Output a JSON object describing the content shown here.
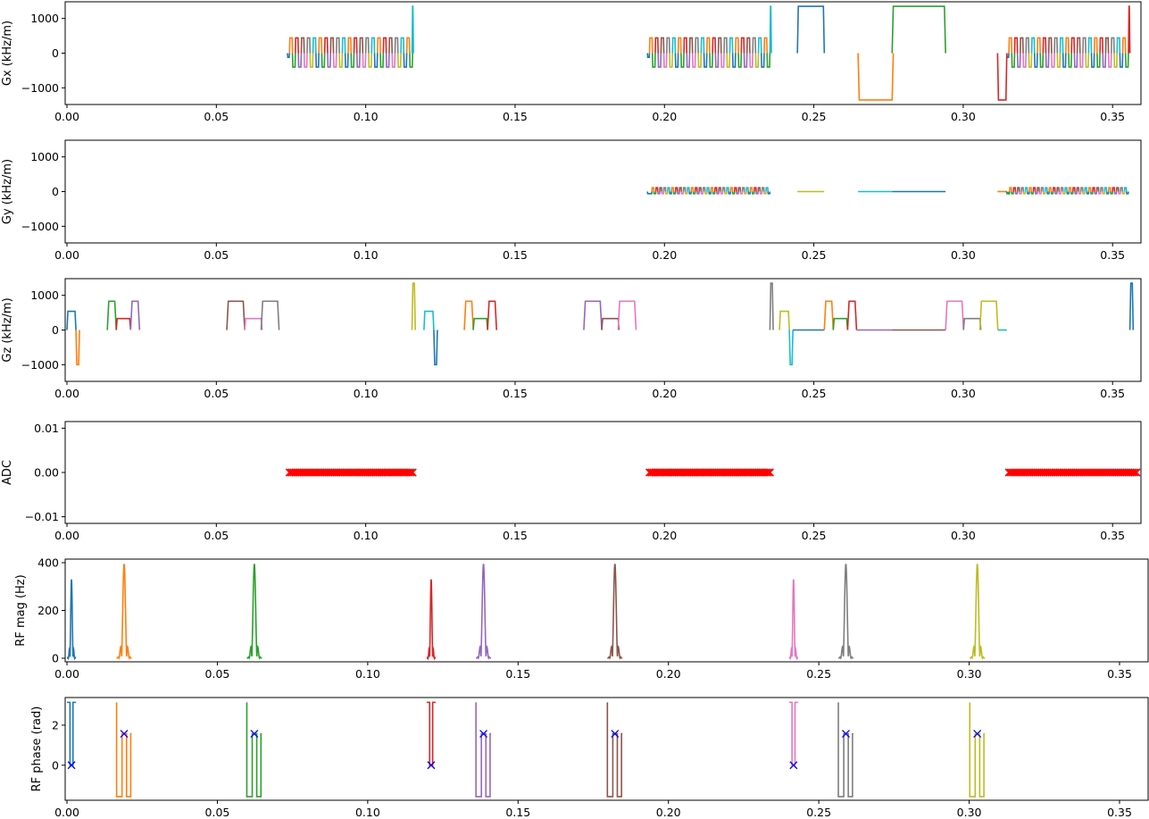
{
  "figure": {
    "x_ticks": [
      "0.00",
      "0.05",
      "0.10",
      "0.15",
      "0.20",
      "0.25",
      "0.30",
      "0.35"
    ]
  },
  "chart_data": [
    {
      "type": "line",
      "ylabel": "Gx (kHz/m)",
      "xlim": [
        -0.0006,
        0.3595
      ],
      "ylim": [
        -1480,
        1480
      ],
      "y_ticks": [
        {
          "v": 1000,
          "t": "1000"
        },
        {
          "v": 0,
          "t": "0"
        },
        {
          "v": -1000,
          "t": "−1000"
        }
      ],
      "trains": [
        {
          "t0": 0.0745,
          "t1": 0.1157,
          "n": 42,
          "hi": 440,
          "lo": -400,
          "lead": [
            0.0738,
            -120
          ]
        },
        {
          "t0": 0.195,
          "t1": 0.2353,
          "n": 42,
          "hi": 440,
          "lo": -400,
          "lead": [
            0.1943,
            -120
          ]
        },
        {
          "t0": 0.3153,
          "t1": 0.3553,
          "n": 42,
          "hi": 440,
          "lo": -400,
          "lead": [
            0.3146,
            -120
          ]
        }
      ],
      "series": [
        {
          "color": "#17becf",
          "x": [
            0.1155,
            0.1157,
            0.1158,
            0.116
          ],
          "y": [
            0,
            1350,
            1350,
            0
          ]
        },
        {
          "color": "#17becf",
          "x": [
            0.2353,
            0.2355,
            0.2356,
            0.2358
          ],
          "y": [
            0,
            1350,
            1350,
            0
          ]
        },
        {
          "color": "#1f77b4",
          "x": [
            0.2445,
            0.2448,
            0.2532,
            0.2535
          ],
          "y": [
            0,
            1350,
            1350,
            0
          ]
        },
        {
          "color": "#ff7f0e",
          "x": [
            0.2648,
            0.2652,
            0.2762,
            0.2766
          ],
          "y": [
            0,
            -1350,
            -1350,
            0
          ]
        },
        {
          "color": "#2ca02c",
          "x": [
            0.2762,
            0.2766,
            0.2937,
            0.2941
          ],
          "y": [
            0,
            1350,
            1350,
            0
          ]
        },
        {
          "color": "#d62728",
          "x": [
            0.3115,
            0.3118,
            0.3143,
            0.3146
          ],
          "y": [
            0,
            -1350,
            -1350,
            0
          ]
        },
        {
          "color": "#d62728",
          "x": [
            0.3553,
            0.3555,
            0.3556,
            0.3558
          ],
          "y": [
            0,
            1350,
            1350,
            0
          ]
        }
      ]
    },
    {
      "type": "line",
      "ylabel": "Gy (kHz/m)",
      "xlim": [
        -0.0006,
        0.3595
      ],
      "ylim": [
        -1480,
        1480
      ],
      "y_ticks": [
        {
          "v": 1000,
          "t": "1000"
        },
        {
          "v": 0,
          "t": "0"
        },
        {
          "v": -1000,
          "t": "−1000"
        }
      ],
      "trains": [
        {
          "t0": 0.1958,
          "t1": 0.2353,
          "n": 60,
          "hi": 110,
          "lo": 60,
          "lead": [
            0.1943,
            -60
          ]
        },
        {
          "t0": 0.3155,
          "t1": 0.3553,
          "n": 60,
          "hi": 110,
          "lo": 60,
          "lead": [
            0.3146,
            -60
          ]
        }
      ],
      "series": [
        {
          "color": "#bcbd22",
          "x": [
            0.2445,
            0.2535
          ],
          "y": [
            0,
            0
          ]
        },
        {
          "color": "#17becf",
          "x": [
            0.2648,
            0.2762
          ],
          "y": [
            0,
            0
          ]
        },
        {
          "color": "#1f77b4",
          "x": [
            0.2762,
            0.2941
          ],
          "y": [
            0,
            0
          ]
        },
        {
          "color": "#ff7f0e",
          "x": [
            0.3115,
            0.3146
          ],
          "y": [
            0,
            0
          ]
        },
        {
          "color": "#2ca02c",
          "x": [
            0.3143,
            0.3153,
            0.3153
          ],
          "y": [
            0,
            -60,
            0
          ]
        }
      ]
    },
    {
      "type": "line",
      "ylabel": "Gz (kHz/m)",
      "xlim": [
        -0.0006,
        0.3595
      ],
      "ylim": [
        -1480,
        1480
      ],
      "y_ticks": [
        {
          "v": 1000,
          "t": "1000"
        },
        {
          "v": 0,
          "t": "0"
        },
        {
          "v": -1000,
          "t": "−1000"
        }
      ],
      "series": [
        {
          "color": "#1f77b4",
          "x": [
            0.0,
            0.0003,
            0.0027,
            0.003
          ],
          "y": [
            0,
            540,
            540,
            0
          ]
        },
        {
          "color": "#ff7f0e",
          "x": [
            0.003,
            0.0033,
            0.0039,
            0.0042
          ],
          "y": [
            0,
            -1000,
            -1000,
            0
          ]
        },
        {
          "color": "#2ca02c",
          "x": [
            0.0135,
            0.014,
            0.016,
            0.0165
          ],
          "y": [
            0,
            830,
            830,
            0
          ]
        },
        {
          "color": "#d62728",
          "x": [
            0.0165,
            0.0168,
            0.021,
            0.0213
          ],
          "y": [
            0,
            330,
            330,
            0
          ]
        },
        {
          "color": "#9467bd",
          "x": [
            0.0213,
            0.0218,
            0.0238,
            0.0243
          ],
          "y": [
            0,
            830,
            830,
            0
          ]
        },
        {
          "color": "#8c564b",
          "x": [
            0.0535,
            0.054,
            0.059,
            0.0595
          ],
          "y": [
            0,
            830,
            830,
            0
          ]
        },
        {
          "color": "#e377c2",
          "x": [
            0.0595,
            0.0598,
            0.065,
            0.0653
          ],
          "y": [
            0,
            330,
            330,
            0
          ]
        },
        {
          "color": "#7f7f7f",
          "x": [
            0.065,
            0.0655,
            0.0705,
            0.071
          ],
          "y": [
            0,
            830,
            830,
            0
          ]
        },
        {
          "color": "#bcbd22",
          "x": [
            0.1155,
            0.1158,
            0.1163,
            0.1166
          ],
          "y": [
            0,
            1350,
            1350,
            0
          ]
        },
        {
          "color": "#17becf",
          "x": [
            0.1195,
            0.1198,
            0.1225,
            0.1228
          ],
          "y": [
            0,
            540,
            540,
            0
          ]
        },
        {
          "color": "#1f77b4",
          "x": [
            0.1228,
            0.1231,
            0.1237,
            0.124
          ],
          "y": [
            0,
            -1000,
            -1000,
            0
          ]
        },
        {
          "color": "#ff7f0e",
          "x": [
            0.133,
            0.1335,
            0.1355,
            0.136
          ],
          "y": [
            0,
            830,
            830,
            0
          ]
        },
        {
          "color": "#2ca02c",
          "x": [
            0.136,
            0.1363,
            0.1405,
            0.1408
          ],
          "y": [
            0,
            330,
            330,
            0
          ]
        },
        {
          "color": "#d62728",
          "x": [
            0.1408,
            0.1413,
            0.1433,
            0.1438
          ],
          "y": [
            0,
            830,
            830,
            0
          ]
        },
        {
          "color": "#9467bd",
          "x": [
            0.173,
            0.1735,
            0.1785,
            0.179
          ],
          "y": [
            0,
            830,
            830,
            0
          ]
        },
        {
          "color": "#8c564b",
          "x": [
            0.179,
            0.1793,
            0.1845,
            0.1848
          ],
          "y": [
            0,
            330,
            330,
            0
          ]
        },
        {
          "color": "#e377c2",
          "x": [
            0.1845,
            0.185,
            0.19,
            0.1905
          ],
          "y": [
            0,
            830,
            830,
            0
          ]
        },
        {
          "color": "#7f7f7f",
          "x": [
            0.2353,
            0.2356,
            0.2361,
            0.2364
          ],
          "y": [
            0,
            1350,
            1350,
            0
          ]
        },
        {
          "color": "#bcbd22",
          "x": [
            0.2385,
            0.2388,
            0.2415,
            0.2418
          ],
          "y": [
            0,
            540,
            540,
            0
          ]
        },
        {
          "color": "#17becf",
          "x": [
            0.2418,
            0.2421,
            0.2427,
            0.243
          ],
          "y": [
            0,
            -1000,
            -1000,
            0
          ]
        },
        {
          "color": "#1f77b4",
          "x": [
            0.243,
            0.2535
          ],
          "y": [
            0,
            0
          ]
        },
        {
          "color": "#ff7f0e",
          "x": [
            0.2535,
            0.254,
            0.256,
            0.2565
          ],
          "y": [
            0,
            830,
            830,
            0
          ]
        },
        {
          "color": "#2ca02c",
          "x": [
            0.2565,
            0.2568,
            0.261,
            0.2613
          ],
          "y": [
            0,
            330,
            330,
            0
          ]
        },
        {
          "color": "#d62728",
          "x": [
            0.2613,
            0.2618,
            0.2638,
            0.2643
          ],
          "y": [
            0,
            830,
            830,
            0
          ]
        },
        {
          "color": "#9467bd",
          "x": [
            0.2643,
            0.2762
          ],
          "y": [
            0,
            0
          ]
        },
        {
          "color": "#8c564b",
          "x": [
            0.2762,
            0.2941
          ],
          "y": [
            0,
            0
          ]
        },
        {
          "color": "#e377c2",
          "x": [
            0.2941,
            0.2946,
            0.2996,
            0.3001
          ],
          "y": [
            0,
            830,
            830,
            0
          ]
        },
        {
          "color": "#7f7f7f",
          "x": [
            0.3001,
            0.3004,
            0.3056,
            0.3059
          ],
          "y": [
            0,
            330,
            330,
            0
          ]
        },
        {
          "color": "#bcbd22",
          "x": [
            0.3056,
            0.3061,
            0.3111,
            0.3116
          ],
          "y": [
            0,
            830,
            830,
            0
          ]
        },
        {
          "color": "#17becf",
          "x": [
            0.3116,
            0.3146
          ],
          "y": [
            0,
            0
          ]
        },
        {
          "color": "#1f77b4",
          "x": [
            0.3558,
            0.3561,
            0.3566,
            0.3569
          ],
          "y": [
            0,
            1350,
            1350,
            0
          ]
        }
      ]
    },
    {
      "type": "scatter",
      "ylabel": "ADC",
      "xlim": [
        -0.0006,
        0.3595
      ],
      "ylim": [
        -0.0115,
        0.0115
      ],
      "y_ticks": [
        {
          "v": 0.01,
          "t": "0.01"
        },
        {
          "v": 0,
          "t": "0.00"
        },
        {
          "v": -0.01,
          "t": "−0.01"
        }
      ],
      "marker": "x",
      "color": "#ff0000",
      "ranges": [
        [
          0.0745,
          0.1157,
          64
        ],
        [
          0.195,
          0.2353,
          64
        ],
        [
          0.3153,
          0.358,
          64
        ]
      ]
    },
    {
      "type": "line",
      "ylabel": "RF mag (Hz)",
      "xlim": [
        -0.0006,
        0.3595
      ],
      "ylim": [
        -15,
        415
      ],
      "y_ticks": [
        {
          "v": 400,
          "t": "400"
        },
        {
          "v": 200,
          "t": "200"
        },
        {
          "v": 0,
          "t": "0"
        }
      ],
      "pulses": [
        {
          "color": "#1f77b4",
          "center": 0.0015,
          "width": 0.003,
          "peak": 330
        },
        {
          "color": "#ff7f0e",
          "center": 0.019,
          "width": 0.005,
          "peak": 395
        },
        {
          "color": "#2ca02c",
          "center": 0.0623,
          "width": 0.005,
          "peak": 395
        },
        {
          "color": "#d62728",
          "center": 0.1211,
          "width": 0.003,
          "peak": 330
        },
        {
          "color": "#9467bd",
          "center": 0.1385,
          "width": 0.005,
          "peak": 395
        },
        {
          "color": "#8c564b",
          "center": 0.1822,
          "width": 0.005,
          "peak": 395
        },
        {
          "color": "#e377c2",
          "center": 0.2416,
          "width": 0.003,
          "peak": 330
        },
        {
          "color": "#7f7f7f",
          "center": 0.259,
          "width": 0.005,
          "peak": 395
        },
        {
          "color": "#bcbd22",
          "center": 0.3027,
          "width": 0.005,
          "peak": 395
        }
      ]
    },
    {
      "type": "line",
      "ylabel": "RF phase (rad)",
      "xlim": [
        -0.0006,
        0.3595
      ],
      "ylim": [
        -1.75,
        3.38
      ],
      "y_ticks": [
        {
          "v": 2,
          "t": "2"
        },
        {
          "v": 0,
          "t": "0"
        }
      ],
      "series": [
        {
          "color": "#1f77b4",
          "x": [
            0.0,
            0.001,
            0.001,
            0.002,
            0.002,
            0.003
          ],
          "y": [
            3.14,
            3.14,
            0,
            0,
            3.14,
            3.14
          ]
        },
        {
          "color": "#ff7f0e",
          "x": [
            0.0165,
            0.0165,
            0.0183,
            0.0183,
            0.0198,
            0.0198,
            0.0212,
            0.0212,
            0.0215
          ],
          "y": [
            3.14,
            -1.57,
            -1.57,
            1.57,
            1.57,
            -1.57,
            -1.57,
            1.57,
            1.57
          ]
        },
        {
          "color": "#2ca02c",
          "x": [
            0.0598,
            0.0598,
            0.0616,
            0.0616,
            0.0631,
            0.0631,
            0.0645,
            0.0645,
            0.0648
          ],
          "y": [
            3.14,
            -1.57,
            -1.57,
            1.57,
            1.57,
            -1.57,
            -1.57,
            1.57,
            1.57
          ]
        },
        {
          "color": "#d62728",
          "x": [
            0.1196,
            0.1206,
            0.1206,
            0.1216,
            0.1216,
            0.1226
          ],
          "y": [
            3.14,
            3.14,
            0,
            0,
            3.14,
            3.14
          ]
        },
        {
          "color": "#9467bd",
          "x": [
            0.136,
            0.136,
            0.1378,
            0.1378,
            0.1393,
            0.1393,
            0.1407,
            0.1407,
            0.141
          ],
          "y": [
            3.14,
            -1.57,
            -1.57,
            1.57,
            1.57,
            -1.57,
            -1.57,
            1.57,
            1.57
          ]
        },
        {
          "color": "#8c564b",
          "x": [
            0.1797,
            0.1797,
            0.1815,
            0.1815,
            0.183,
            0.183,
            0.1844,
            0.1844,
            0.1847
          ],
          "y": [
            3.14,
            -1.57,
            -1.57,
            1.57,
            1.57,
            -1.57,
            -1.57,
            1.57,
            1.57
          ]
        },
        {
          "color": "#e377c2",
          "x": [
            0.2401,
            0.2411,
            0.2411,
            0.2421,
            0.2421,
            0.2431
          ],
          "y": [
            3.14,
            3.14,
            0,
            0,
            3.14,
            3.14
          ]
        },
        {
          "color": "#7f7f7f",
          "x": [
            0.2565,
            0.2565,
            0.2583,
            0.2583,
            0.2598,
            0.2598,
            0.2612,
            0.2612,
            0.2615
          ],
          "y": [
            3.14,
            -1.57,
            -1.57,
            1.57,
            1.57,
            -1.57,
            -1.57,
            1.57,
            1.57
          ]
        },
        {
          "color": "#bcbd22",
          "x": [
            0.3002,
            0.3002,
            0.302,
            0.302,
            0.3035,
            0.3035,
            0.3049,
            0.3049,
            0.3052
          ],
          "y": [
            3.14,
            -1.57,
            -1.57,
            1.57,
            1.57,
            -1.57,
            -1.57,
            1.57,
            1.57
          ]
        }
      ],
      "markers": {
        "color": "#0000ff",
        "x": [
          0.0015,
          0.019,
          0.0623,
          0.1211,
          0.1385,
          0.1822,
          0.2416,
          0.259,
          0.3027
        ],
        "y": [
          0,
          1.57,
          1.57,
          0,
          1.57,
          1.57,
          0,
          1.57,
          1.57
        ]
      }
    }
  ]
}
